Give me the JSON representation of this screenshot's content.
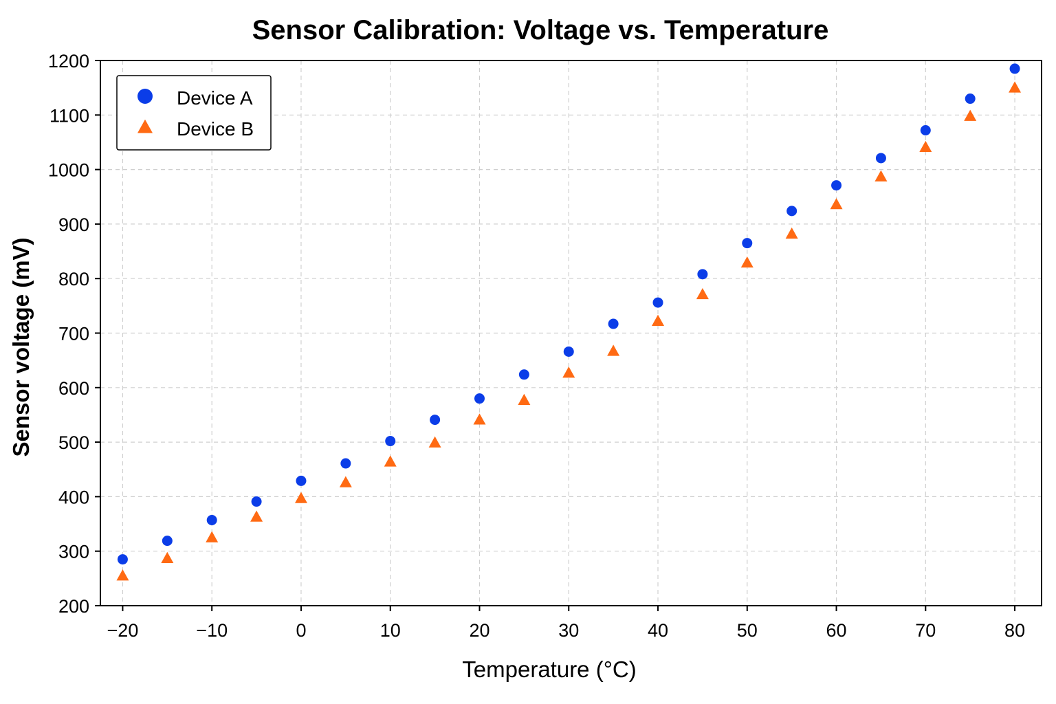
{
  "chart_data": {
    "type": "scatter",
    "title": "Sensor Calibration: Voltage vs. Temperature",
    "xlabel": "Temperature (°C)",
    "ylabel": "Sensor voltage (mV)",
    "xlim": [
      -22.5,
      83
    ],
    "ylim": [
      200,
      1200
    ],
    "xticks": [
      -20,
      -10,
      0,
      10,
      20,
      30,
      40,
      50,
      60,
      70,
      80
    ],
    "xtick_labels": [
      "−20",
      "−10",
      "0",
      "10",
      "20",
      "30",
      "40",
      "50",
      "60",
      "70",
      "80"
    ],
    "yticks": [
      200,
      300,
      400,
      500,
      600,
      700,
      800,
      900,
      1000,
      1100,
      1200
    ],
    "ytick_labels": [
      "200",
      "300",
      "400",
      "500",
      "600",
      "700",
      "800",
      "900",
      "1000",
      "1100",
      "1200"
    ],
    "grid": true,
    "legend_position": "top-left",
    "series": [
      {
        "name": "Device A",
        "marker": "circle",
        "color": "#0b3de8",
        "x": [
          -20,
          -15,
          -10,
          -5,
          0,
          5,
          10,
          15,
          20,
          25,
          30,
          35,
          40,
          45,
          50,
          55,
          60,
          65,
          70,
          75,
          80
        ],
        "y": [
          285,
          319,
          357,
          391,
          429,
          461,
          502,
          541,
          580,
          624,
          666,
          717,
          756,
          808,
          865,
          924,
          971,
          1021,
          1072,
          1130,
          1185
        ]
      },
      {
        "name": "Device B",
        "marker": "triangle",
        "color": "#ff6a13",
        "x": [
          -20,
          -15,
          -10,
          -5,
          0,
          5,
          10,
          15,
          20,
          25,
          30,
          35,
          40,
          45,
          50,
          55,
          60,
          65,
          70,
          75,
          80
        ],
        "y": [
          254,
          286,
          324,
          362,
          396,
          425,
          463,
          498,
          540,
          576,
          626,
          666,
          721,
          770,
          828,
          881,
          935,
          986,
          1040,
          1097,
          1149
        ]
      }
    ]
  }
}
